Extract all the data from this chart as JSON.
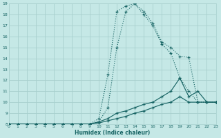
{
  "xlabel": "Humidex (Indice chaleur)",
  "bg_color": "#c5e8e6",
  "grid_color": "#a8d0ce",
  "line_color": "#1a6666",
  "xlim": [
    0,
    23
  ],
  "ylim": [
    8,
    19
  ],
  "xticks": [
    0,
    1,
    2,
    3,
    4,
    5,
    6,
    7,
    8,
    9,
    10,
    11,
    12,
    13,
    14,
    15,
    16,
    17,
    18,
    19,
    20,
    21,
    22,
    23
  ],
  "yticks": [
    8,
    9,
    10,
    11,
    12,
    13,
    14,
    15,
    16,
    17,
    18,
    19
  ],
  "lines": [
    {
      "x": [
        0,
        1,
        2,
        3,
        4,
        5,
        6,
        7,
        8,
        9,
        10,
        11,
        12,
        13,
        14,
        15,
        16,
        17,
        18,
        19,
        20,
        21,
        22,
        23
      ],
      "y": [
        8.0,
        8.0,
        8.0,
        8.0,
        8.0,
        8.0,
        8.0,
        8.0,
        8.0,
        8.0,
        8.2,
        9.5,
        15.0,
        18.3,
        19.0,
        18.3,
        17.2,
        15.5,
        15.0,
        14.2,
        14.1,
        10.0,
        10.0,
        10.0
      ],
      "style": "dotted"
    },
    {
      "x": [
        0,
        1,
        2,
        3,
        4,
        5,
        6,
        7,
        8,
        9,
        10,
        11,
        12,
        13,
        14,
        15,
        16,
        17,
        18,
        19,
        20,
        21,
        22,
        23
      ],
      "y": [
        8.0,
        8.0,
        8.0,
        8.0,
        8.0,
        8.0,
        8.0,
        8.0,
        8.0,
        8.0,
        8.5,
        12.5,
        18.3,
        18.8,
        19.0,
        18.0,
        17.0,
        15.3,
        14.5,
        12.2,
        11.0,
        10.0,
        10.0,
        10.0
      ],
      "style": "dotted"
    },
    {
      "x": [
        0,
        1,
        2,
        3,
        4,
        5,
        6,
        7,
        8,
        9,
        10,
        11,
        12,
        13,
        14,
        15,
        16,
        17,
        18,
        19,
        20,
        21,
        22,
        23
      ],
      "y": [
        8.0,
        8.0,
        8.0,
        8.0,
        8.0,
        8.0,
        8.0,
        8.0,
        8.0,
        8.0,
        8.2,
        8.5,
        9.0,
        9.2,
        9.5,
        9.8,
        10.0,
        10.5,
        11.0,
        12.2,
        10.5,
        11.0,
        10.0,
        10.0
      ],
      "style": "solid"
    },
    {
      "x": [
        0,
        1,
        2,
        3,
        4,
        5,
        6,
        7,
        8,
        9,
        10,
        11,
        12,
        13,
        14,
        15,
        16,
        17,
        18,
        19,
        20,
        21,
        22,
        23
      ],
      "y": [
        8.0,
        8.0,
        8.0,
        8.0,
        8.0,
        8.0,
        8.0,
        8.0,
        8.0,
        8.0,
        8.1,
        8.3,
        8.5,
        8.7,
        9.0,
        9.2,
        9.5,
        9.8,
        10.0,
        10.5,
        10.0,
        10.0,
        10.0,
        10.0
      ],
      "style": "solid"
    }
  ]
}
